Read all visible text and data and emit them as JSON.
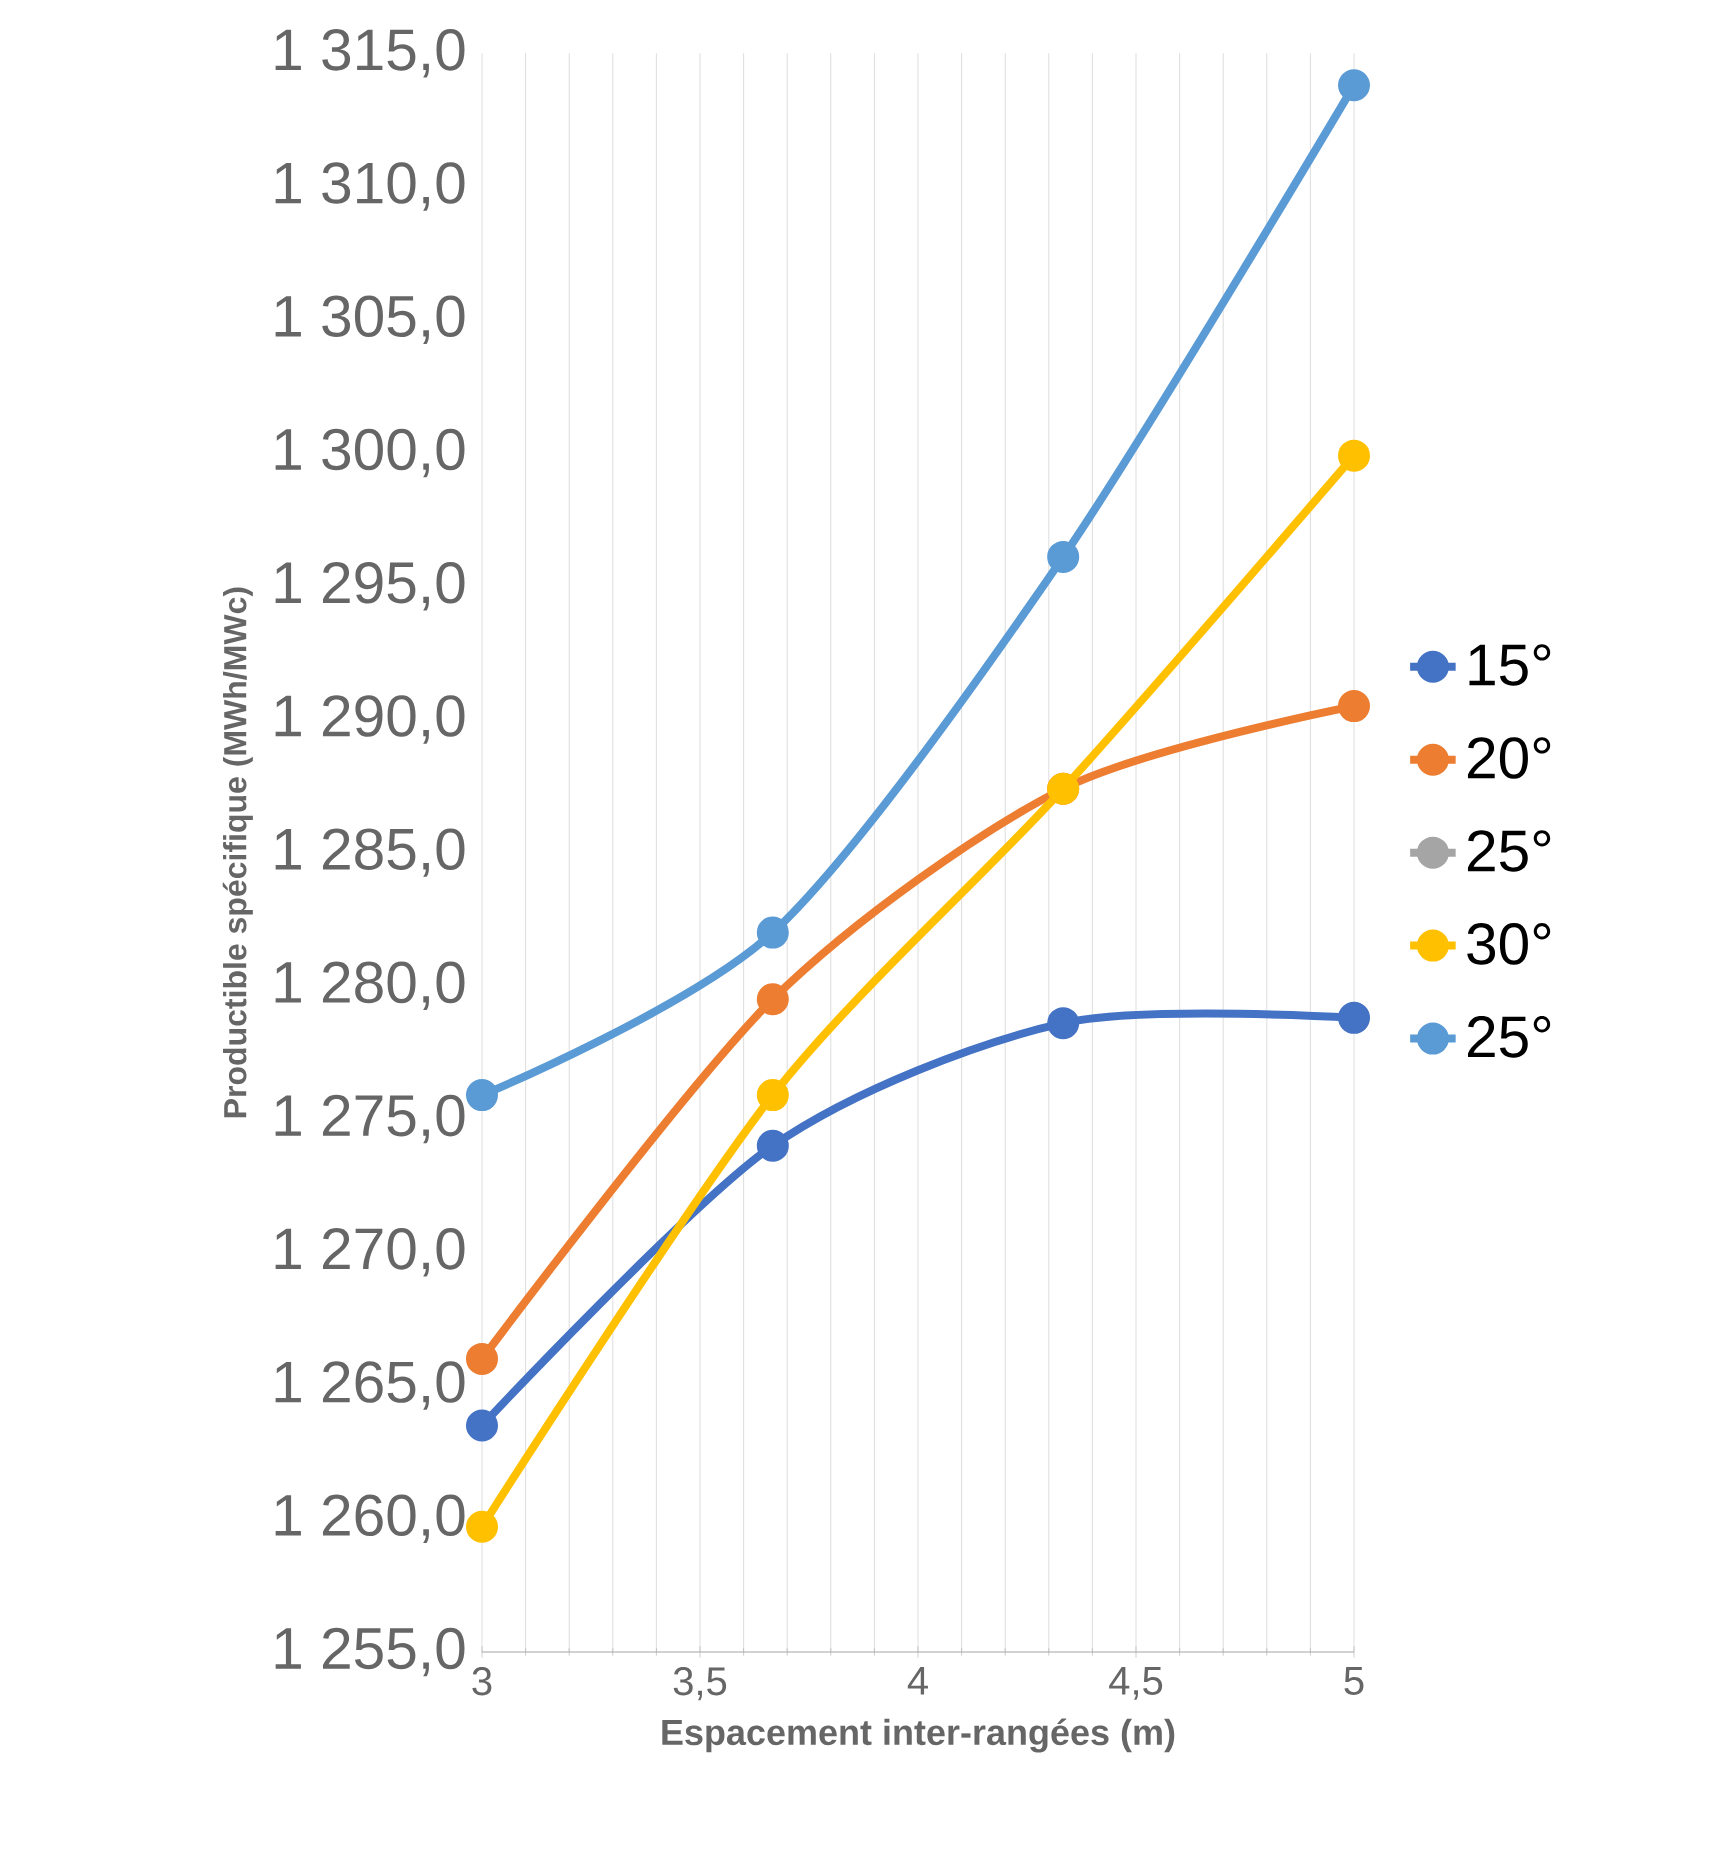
{
  "chart_data": {
    "type": "line",
    "xlabel": "Espacement inter-rangées (m)",
    "ylabel": "Productible spécifique (MWh/MWc)",
    "xlim": [
      3,
      5
    ],
    "ylim": [
      1255,
      1315
    ],
    "xticks": [
      3,
      {
        "value": 3.5,
        "label": "3,5"
      },
      4,
      {
        "value": 4.5,
        "label": "4,5"
      },
      5
    ],
    "yticks": [
      {
        "value": 1255,
        "label": "1 255,0"
      },
      {
        "value": 1260,
        "label": "1 260,0"
      },
      {
        "value": 1265,
        "label": "1 265,0"
      },
      {
        "value": 1270,
        "label": "1 270,0"
      },
      {
        "value": 1275,
        "label": "1 275,0"
      },
      {
        "value": 1280,
        "label": "1 280,0"
      },
      {
        "value": 1285,
        "label": "1 285,0"
      },
      {
        "value": 1290,
        "label": "1 290,0"
      },
      {
        "value": 1295,
        "label": "1 295,0"
      },
      {
        "value": 1300,
        "label": "1 300,0"
      },
      {
        "value": 1305,
        "label": "1 305,0"
      },
      {
        "value": 1310,
        "label": "1 310,0"
      },
      {
        "value": 1315,
        "label": "1 315,0"
      }
    ],
    "x": [
      3,
      3.667,
      4.333,
      5
    ],
    "series": [
      {
        "name": "15°",
        "color": "#4472c4",
        "values": [
          1263.5,
          1274.0,
          1278.6,
          1278.8
        ]
      },
      {
        "name": "20°",
        "color": "#ed7d31",
        "values": [
          1266.0,
          1279.5,
          1287.4,
          1290.5
        ]
      },
      {
        "name": "25°",
        "color": "#a5a5a5",
        "values": [
          null,
          null,
          null,
          null
        ]
      },
      {
        "name": "30°",
        "color": "#ffc000",
        "values": [
          1259.7,
          1275.9,
          1287.4,
          1299.9
        ]
      },
      {
        "name": "25°",
        "color": "#5b9bd5",
        "values": [
          1275.9,
          1282.0,
          1296.1,
          1313.8
        ]
      }
    ],
    "grid": "x",
    "legend": "right",
    "marker": "circle",
    "line_style": "solid"
  }
}
